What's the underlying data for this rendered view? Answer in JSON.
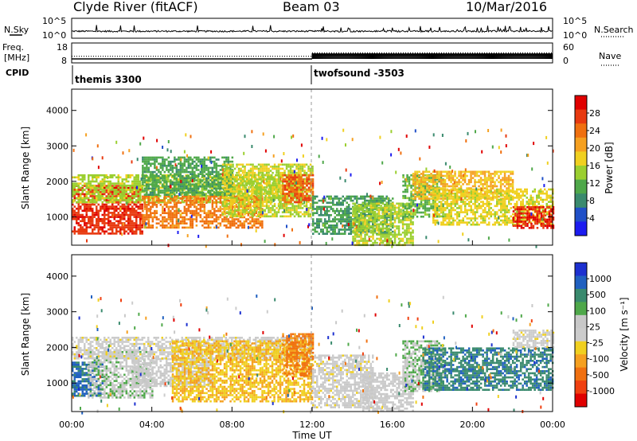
{
  "header": {
    "station": "Clyde River (fitACF)",
    "beam": "Beam 03",
    "date": "10/Mar/2016"
  },
  "strip_labels": {
    "nsky": "N.Sky",
    "nsearch": "N.Search",
    "freq_line1": "Freq.",
    "freq_line2": "[MHz]",
    "nave": "Nave",
    "cpid": "CPID"
  },
  "chart_data": [
    {
      "type": "line",
      "name": "sky-noise-strip",
      "left_ticks": [
        "10^5",
        "10^0"
      ],
      "right_ticks": [
        "10^5",
        "10^0"
      ],
      "noise_level": 0.35,
      "extra_noise_after_hour": 12
    },
    {
      "type": "line",
      "name": "frequency-nave-strip",
      "left_ticks": [
        "18",
        "8"
      ],
      "right_ticks": [
        "60",
        "0"
      ],
      "freq_ylim": [
        8,
        18
      ],
      "nave_ylim": [
        0,
        60
      ],
      "segments": [
        {
          "x_start": 0,
          "x_end": 12,
          "freq_mhz": 10.0,
          "nave": 20
        },
        {
          "x_start": 12,
          "x_end": 24,
          "freq_mhz": 12.0,
          "nave": 30
        }
      ]
    },
    {
      "type": "heatmap",
      "name": "power",
      "ylabel": "Slant Range [km]",
      "xlim": [
        0,
        24
      ],
      "ylim": [
        200,
        4600
      ],
      "yticks": [
        1000,
        2000,
        3000,
        4000
      ],
      "colorbar_label": "Power [dB]",
      "colorbar_ticks": [
        "4",
        "8",
        "12",
        "16",
        "20",
        "24",
        "28"
      ],
      "colorbar_range": [
        0,
        30
      ],
      "colors": [
        "#1c1cf0",
        "#2050c8",
        "#3a8a6e",
        "#4fa84a",
        "#9bcf30",
        "#f0d020",
        "#f5a020",
        "#f07010",
        "#e83a10",
        "#e00000"
      ],
      "blobs": [
        {
          "t0": 0,
          "t1": 3.5,
          "r0": 550,
          "r1": 1900,
          "v": 26
        },
        {
          "t0": 0,
          "t1": 11.5,
          "r0": 1400,
          "r1": 2200,
          "v": 14
        },
        {
          "t0": 3.5,
          "t1": 9.5,
          "r0": 700,
          "r1": 1600,
          "v": 22
        },
        {
          "t0": 3.5,
          "t1": 8,
          "r0": 1600,
          "r1": 2700,
          "v": 10
        },
        {
          "t0": 7.5,
          "t1": 12,
          "r0": 1000,
          "r1": 2500,
          "v": 15
        },
        {
          "t0": 10.5,
          "t1": 12,
          "r0": 1400,
          "r1": 2200,
          "v": 24
        },
        {
          "t0": 12,
          "t1": 16,
          "r0": 500,
          "r1": 1600,
          "v": 9
        },
        {
          "t0": 14,
          "t1": 17,
          "r0": 200,
          "r1": 1400,
          "v": 14
        },
        {
          "t0": 16.5,
          "t1": 18.5,
          "r0": 1000,
          "r1": 2200,
          "v": 11
        },
        {
          "t0": 17,
          "t1": 22,
          "r0": 1500,
          "r1": 2300,
          "v": 18
        },
        {
          "t0": 18,
          "t1": 24,
          "r0": 800,
          "r1": 1800,
          "v": 16
        },
        {
          "t0": 22,
          "t1": 24,
          "r0": 700,
          "r1": 1300,
          "v": 27
        }
      ]
    },
    {
      "type": "heatmap",
      "name": "velocity",
      "ylabel": "Slant Range [km]",
      "xlabel": "Time UT",
      "xlim": [
        0,
        24
      ],
      "ylim": [
        200,
        4600
      ],
      "yticks": [
        1000,
        2000,
        3000,
        4000
      ],
      "xticks": [
        "00:00",
        "04:00",
        "08:00",
        "12:00",
        "16:00",
        "20:00",
        "00:00"
      ],
      "colorbar_label": "Velocity [m s⁻¹]",
      "colorbar_ticks": [
        "1000",
        "500",
        "100",
        "25",
        "-25",
        "-100",
        "-500",
        "-1000"
      ],
      "colorbar_range": [
        -1200,
        1200
      ],
      "colors": [
        "#e00000",
        "#f04010",
        "#f07010",
        "#f5a020",
        "#f0d020",
        "#cccccc",
        "#c8c8c8",
        "#4fa84a",
        "#3a8a6e",
        "#2060c0",
        "#1c30d0"
      ],
      "blobs": [
        {
          "t0": 0,
          "t1": 1.5,
          "r0": 650,
          "r1": 1600,
          "v": 800
        },
        {
          "t0": 0.8,
          "t1": 4,
          "r0": 600,
          "r1": 1900,
          "v": 250
        },
        {
          "t0": 3,
          "t1": 7,
          "r0": 900,
          "r1": 1700,
          "v": 120
        },
        {
          "t0": 0,
          "t1": 12,
          "r0": 1700,
          "r1": 2300,
          "v": 0
        },
        {
          "t0": 5,
          "t1": 12,
          "r0": 500,
          "r1": 2200,
          "v": -300
        },
        {
          "t0": 10.5,
          "t1": 12,
          "r0": 1200,
          "r1": 2400,
          "v": -600
        },
        {
          "t0": 12,
          "t1": 15,
          "r0": 300,
          "r1": 1800,
          "v": 10
        },
        {
          "t0": 14.5,
          "t1": 17,
          "r0": 200,
          "r1": 1300,
          "v": 150
        },
        {
          "t0": 16.5,
          "t1": 18.5,
          "r0": 800,
          "r1": 2200,
          "v": 300
        },
        {
          "t0": 17.5,
          "t1": 24,
          "r0": 800,
          "r1": 2000,
          "v": 700
        },
        {
          "t0": 22,
          "t1": 24,
          "r0": 2000,
          "r1": 2500,
          "v": 0
        }
      ]
    }
  ],
  "annotations": {
    "cpid_left": "themis 3300",
    "cpid_right": "twofsound -3503"
  }
}
